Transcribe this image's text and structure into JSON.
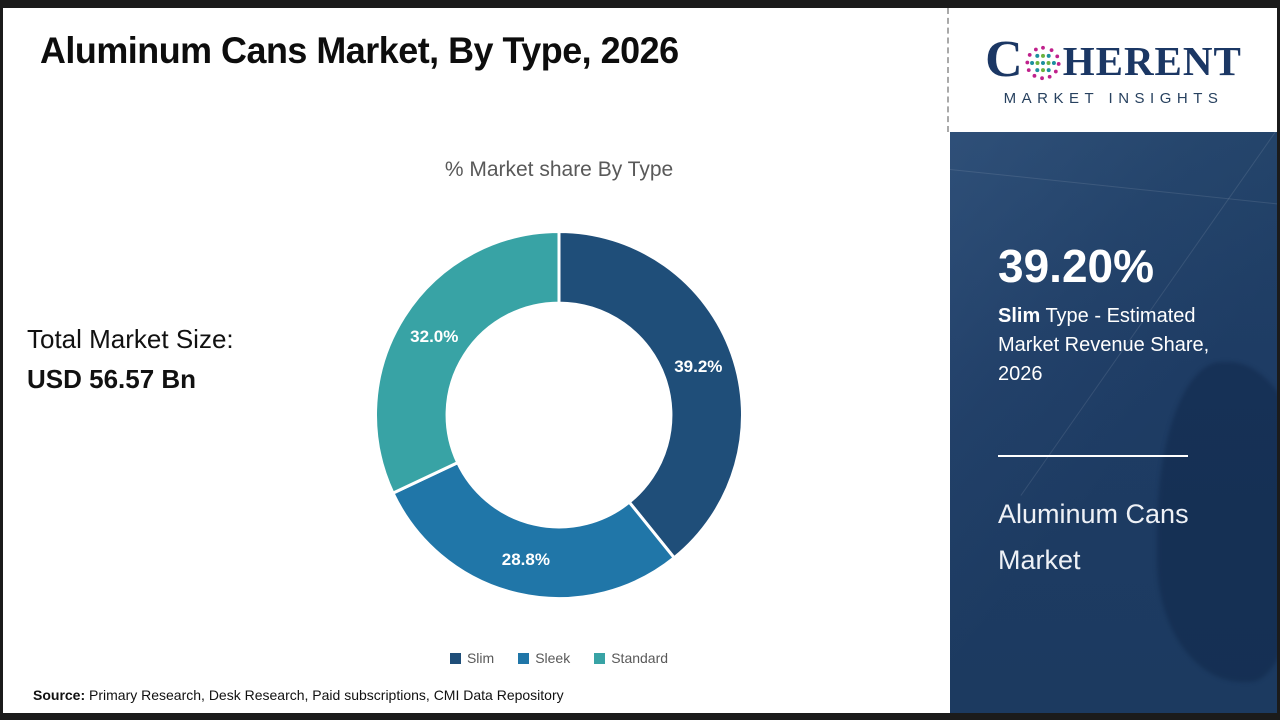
{
  "page": {
    "title": "Aluminum Cans Market, By Type, 2026",
    "source_label": "Source:",
    "source_text": " Primary Research, Desk Research, Paid subscriptions, CMI Data Repository"
  },
  "logo": {
    "first_letter": "C",
    "rest": "HERENT",
    "subtitle": "MARKET INSIGHTS",
    "navy": "#1b3764",
    "globe_dot_colors": {
      "outer": "#c0218c",
      "teal": "#1d8f9e",
      "green": "#6cb33f"
    }
  },
  "left_panel": {
    "total_label": "Total Market Size:",
    "total_value": "USD 56.57 Bn"
  },
  "chart_data": {
    "type": "pie",
    "subtype": "donut",
    "title": "% Market share By Type",
    "categories": [
      "Slim",
      "Sleek",
      "Standard"
    ],
    "values": [
      39.2,
      28.8,
      32.0
    ],
    "labels": [
      "39.2%",
      "28.8%",
      "32.0%"
    ],
    "colors": [
      "#1f4e79",
      "#2076a8",
      "#38a3a5"
    ],
    "donut_hole_ratio": 0.61,
    "start_angle_deg": 0,
    "direction": "clockwise",
    "legend_position": "bottom",
    "label_color": "#ffffff"
  },
  "sidebar": {
    "stat_value": "39.20%",
    "stat_bold": "Slim",
    "stat_rest": " Type - Estimated Market Revenue Share, 2026",
    "market_name": "Aluminum Cans Market",
    "bg_color": "#1e3c64"
  }
}
